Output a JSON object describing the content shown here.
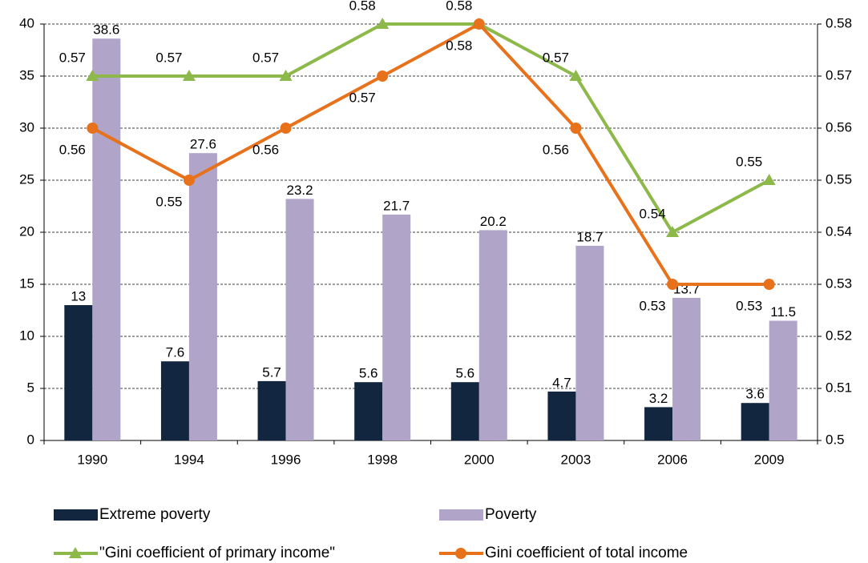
{
  "chart_data": {
    "type": "bar_line",
    "categories": [
      "1990",
      "1994",
      "1996",
      "1998",
      "2000",
      "2003",
      "2006",
      "2009"
    ],
    "series": [
      {
        "name": "Extreme poverty",
        "type": "bar",
        "color": "#12263f",
        "values": [
          13,
          7.6,
          5.7,
          5.6,
          5.6,
          4.7,
          3.2,
          3.6
        ]
      },
      {
        "name": "Poverty",
        "type": "bar",
        "color": "#b0a4c8",
        "values": [
          38.6,
          27.6,
          23.2,
          21.7,
          20.2,
          18.7,
          13.7,
          11.5
        ]
      },
      {
        "name": "\"Gini coefficient of primary income\"",
        "type": "line",
        "marker": "triangle",
        "axis": "y2",
        "color": "#8db84a",
        "values": [
          0.57,
          0.57,
          0.57,
          0.58,
          0.58,
          0.57,
          0.54,
          0.55
        ]
      },
      {
        "name": "Gini coefficient of total income",
        "type": "line",
        "marker": "circle",
        "axis": "y2",
        "color": "#e8711c",
        "values": [
          0.56,
          0.55,
          0.56,
          0.57,
          0.58,
          0.56,
          0.53,
          0.53
        ]
      }
    ],
    "ylim": [
      0,
      40
    ],
    "yticks": [
      0,
      5,
      10,
      15,
      20,
      25,
      30,
      35,
      40
    ],
    "y2lim": [
      0.5,
      0.58
    ],
    "y2ticks": [
      0.5,
      0.51,
      0.52,
      0.53,
      0.54,
      0.55,
      0.56,
      0.57,
      0.58
    ],
    "grid": true,
    "legend": "bottom"
  }
}
